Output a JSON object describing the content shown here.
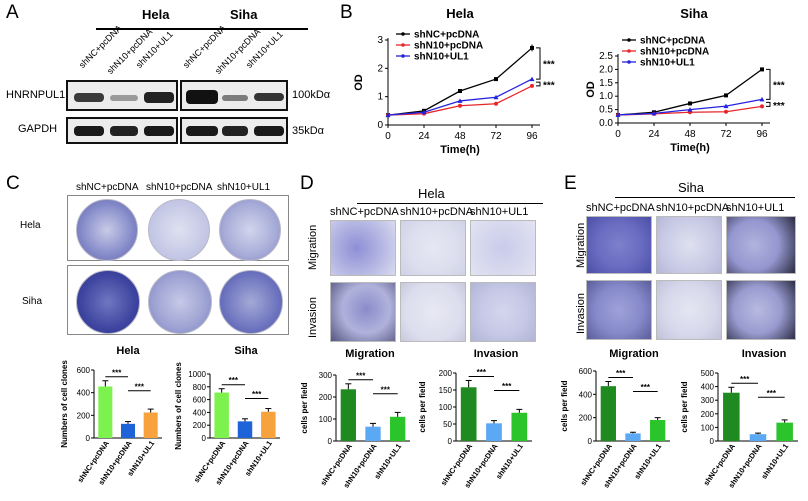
{
  "panels": {
    "A": "A",
    "B": "B",
    "C": "C",
    "D": "D",
    "E": "E"
  },
  "panelA": {
    "groups": [
      "Hela",
      "Siha"
    ],
    "lanes": [
      "shNC+pcDNA",
      "shN10+pcDNA",
      "shN10+UL1"
    ],
    "rows": [
      "HNRNPUL1",
      "GAPDH"
    ],
    "sizes": [
      "100kDα",
      "35kDα"
    ]
  },
  "panelB": {
    "legend": [
      "shNC+pcDNA",
      "shN10+pcDNA",
      "shN10+UL1"
    ],
    "sig": "***"
  },
  "panelC": {
    "cols": [
      "shNC+pcDNA",
      "shN10+pcDNA",
      "shN10+UL1"
    ],
    "rows": [
      "Hela",
      "Siha"
    ]
  },
  "panelD": {
    "title": "Hela",
    "cols": [
      "shNC+pcDNA",
      "shN10+pcDNA",
      "shN10+UL1"
    ],
    "rows": [
      "Migration",
      "Invasion"
    ]
  },
  "panelE": {
    "title": "Siha",
    "cols": [
      "shNC+pcDNA",
      "shN10+pcDNA",
      "shN10+UL1"
    ],
    "rows": [
      "Migration",
      "Invasion"
    ]
  },
  "colors": {
    "black": "#000000",
    "red": "#e8262a",
    "blue": "#2424e0",
    "c_green": "#7df24e",
    "c_blue": "#1e63d8",
    "c_orange": "#f7a23c",
    "d_dark": "#1f8a1f",
    "d_blue": "#5ba8f5",
    "d_green": "#2bc42b"
  },
  "chart_data": [
    {
      "id": "B1",
      "type": "line",
      "title": "Hela",
      "xlabel": "Time(h)",
      "ylabel": "OD",
      "x": [
        0,
        24,
        48,
        72,
        96
      ],
      "ylim": [
        0,
        3
      ],
      "yticks": [
        0,
        1,
        2,
        3
      ],
      "series": [
        {
          "name": "shNC+pcDNA",
          "values": [
            0.35,
            0.5,
            1.2,
            1.62,
            2.72
          ],
          "err": [
            0,
            0.03,
            0.04,
            0.04,
            0.12
          ]
        },
        {
          "name": "shN10+pcDNA",
          "values": [
            0.35,
            0.4,
            0.68,
            0.75,
            1.38
          ],
          "err": [
            0,
            0.02,
            0.03,
            0.03,
            0.05
          ]
        },
        {
          "name": "shN10+UL1",
          "values": [
            0.35,
            0.45,
            0.85,
            0.98,
            1.62
          ],
          "err": [
            0,
            0.02,
            0.03,
            0.04,
            0.05
          ]
        }
      ],
      "annotations": [
        "***",
        "***"
      ]
    },
    {
      "id": "B2",
      "type": "line",
      "title": "Siha",
      "xlabel": "Time(h)",
      "ylabel": "OD",
      "x": [
        0,
        24,
        48,
        72,
        96
      ],
      "ylim": [
        0,
        2.5
      ],
      "yticks": [
        0.0,
        0.5,
        1.0,
        1.5,
        2.0,
        2.5
      ],
      "series": [
        {
          "name": "shNC+pcDNA",
          "values": [
            0.3,
            0.4,
            0.73,
            1.03,
            2.0
          ],
          "err": [
            0,
            0.02,
            0.04,
            0.03,
            0.03
          ]
        },
        {
          "name": "shN10+pcDNA",
          "values": [
            0.3,
            0.34,
            0.4,
            0.42,
            0.62
          ],
          "err": [
            0,
            0.01,
            0.02,
            0.02,
            0.03
          ]
        },
        {
          "name": "shN10+UL1",
          "values": [
            0.3,
            0.36,
            0.5,
            0.63,
            0.88
          ],
          "err": [
            0,
            0.01,
            0.02,
            0.02,
            0.03
          ]
        }
      ],
      "annotations": [
        "***",
        "***"
      ]
    },
    {
      "id": "C1",
      "type": "bar",
      "title": "Hela",
      "ylabel": "Numbers of cell clones",
      "categories": [
        "shNC+pcDNA",
        "shN10+pcDNA",
        "shN10+UL1"
      ],
      "values": [
        455,
        125,
        225
      ],
      "err": [
        50,
        20,
        30
      ],
      "ylim": [
        0,
        600
      ],
      "yticks": [
        0,
        200,
        400,
        600
      ],
      "annotations": [
        "***",
        "***"
      ]
    },
    {
      "id": "C2",
      "type": "bar",
      "title": "Siha",
      "ylabel": "Numbers of cell clones",
      "categories": [
        "shNC+pcDNA",
        "shN10+pcDNA",
        "shN10+UL1"
      ],
      "values": [
        710,
        260,
        410
      ],
      "err": [
        60,
        40,
        50
      ],
      "ylim": [
        0,
        1000
      ],
      "yticks": [
        0,
        200,
        400,
        600,
        800,
        1000
      ],
      "annotations": [
        "***",
        "***"
      ]
    },
    {
      "id": "D1",
      "type": "bar",
      "title": "Migration",
      "ylabel": "cells per field",
      "categories": [
        "shNC+pcDNA",
        "shN10+pcDNA",
        "shN10+UL1"
      ],
      "values": [
        235,
        65,
        110
      ],
      "err": [
        25,
        15,
        20
      ],
      "ylim": [
        0,
        300
      ],
      "yticks": [
        0,
        100,
        200,
        300
      ],
      "annotations": [
        "***",
        "***"
      ]
    },
    {
      "id": "D2",
      "type": "bar",
      "title": "Invasion",
      "ylabel": "cells per field",
      "categories": [
        "shNC+pcDNA",
        "shN10+pcDNA",
        "shN10+UL1"
      ],
      "values": [
        158,
        52,
        83
      ],
      "err": [
        20,
        8,
        10
      ],
      "ylim": [
        0,
        200
      ],
      "yticks": [
        0,
        50,
        100,
        150,
        200
      ],
      "annotations": [
        "***",
        "***"
      ]
    },
    {
      "id": "E1",
      "type": "bar",
      "title": "Migration",
      "ylabel": "cells per field",
      "categories": [
        "shNC+pcDNA",
        "shN10+pcDNA",
        "shN10+UL1"
      ],
      "values": [
        470,
        65,
        180
      ],
      "err": [
        40,
        10,
        20
      ],
      "ylim": [
        0,
        600
      ],
      "yticks": [
        0,
        200,
        400,
        600
      ],
      "annotations": [
        "***",
        "***"
      ]
    },
    {
      "id": "E2",
      "type": "bar",
      "title": "Invasion",
      "ylabel": "cells per field",
      "categories": [
        "shNC+pcDNA",
        "shN10+pcDNA",
        "shN10+UL1"
      ],
      "values": [
        355,
        50,
        135
      ],
      "err": [
        40,
        8,
        20
      ],
      "ylim": [
        0,
        500
      ],
      "yticks": [
        0,
        100,
        200,
        300,
        400,
        500
      ],
      "annotations": [
        "***",
        "***"
      ]
    }
  ]
}
